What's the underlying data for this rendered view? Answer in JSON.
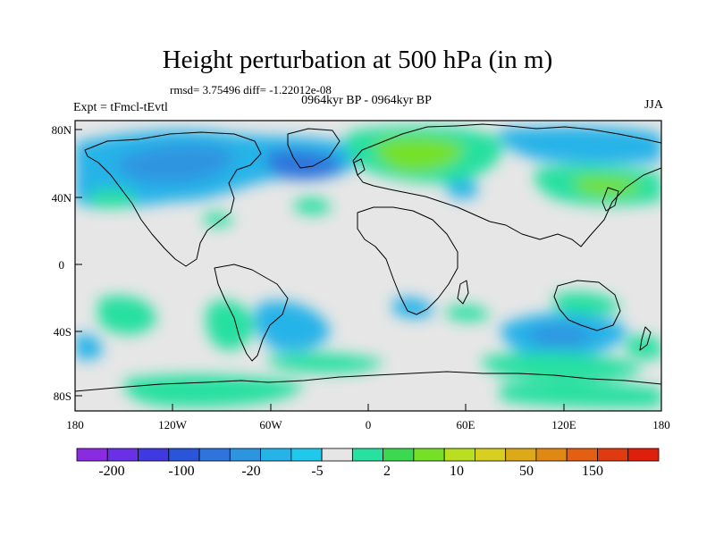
{
  "title": "Height perturbation at 500 hPa (in m)",
  "stats": "rmsd= 3.75496 diff= -1.22012e-08",
  "experiment": "Expt = tFmcl-tEvtl",
  "period": "0964kyr BP - 0964kyr BP",
  "season": "JJA",
  "axes": {
    "lat_labels": [
      "80N",
      "40N",
      "0",
      "40S",
      "80S"
    ],
    "lon_labels": [
      "180",
      "120W",
      "60W",
      "0",
      "60E",
      "120E",
      "180"
    ]
  },
  "colorbar": {
    "colors": [
      "#8a2be2",
      "#6a30e6",
      "#4038e0",
      "#2a55d8",
      "#2f74dc",
      "#2d95e0",
      "#25b3e8",
      "#20c8ec",
      "#e6e6e6",
      "#28e0a0",
      "#3cd850",
      "#76e028",
      "#b8e020",
      "#d8d020",
      "#dcaa18",
      "#e08814",
      "#e45e14",
      "#e03a10",
      "#e01e0c"
    ],
    "labels": [
      "-200",
      "-100",
      "-20",
      "-5",
      "2",
      "10",
      "50",
      "150"
    ]
  }
}
